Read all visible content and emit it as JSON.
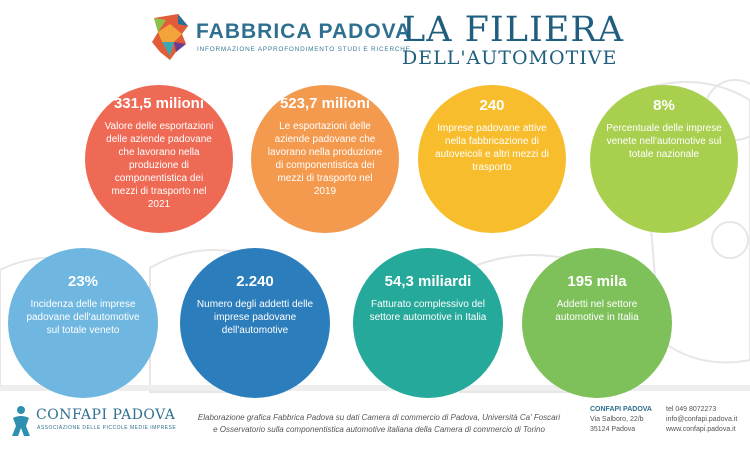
{
  "header": {
    "brand_name": "FABBRICA PADOVA",
    "brand_tagline": "INFORMAZIONE APPROFONDIMENTO STUDI E RICERCHE",
    "title_main": "LA FILIERA",
    "title_sub": "DELL'AUTOMOTIVE"
  },
  "stats": [
    {
      "value": "331,5 milioni",
      "description": "Valore delle esportazioni delle aziende padovane che lavorano nella produzione di componentistica dei mezzi di trasporto nel 2021",
      "color": "#ee6a55"
    },
    {
      "value": "523,7 milioni",
      "description": "Le esportazioni delle aziende padovane che lavorano nella produzione di componentistica dei mezzi di trasporto nel 2019",
      "color": "#f39a4f"
    },
    {
      "value": "240",
      "description": "Imprese padovane attive nella fabbricazione di autoveicoli e altri mezzi di trasporto",
      "color": "#f7bd2c"
    },
    {
      "value": "8%",
      "description": "Percentuale delle imprese venete nell'automotive sul totale nazionale",
      "color": "#a9cf4f"
    },
    {
      "value": "23%",
      "description": "Incidenza delle imprese padovane dell'automotive sul totale veneto",
      "color": "#6fb7e0"
    },
    {
      "value": "2.240",
      "description": "Numero degli addetti delle imprese padovane dell'automotive",
      "color": "#2c7dbb"
    },
    {
      "value": "54,3 miliardi",
      "description": "Fatturato complessivo del settore automotive in Italia",
      "color": "#25a99a"
    },
    {
      "value": "195 mila",
      "description": "Addetti nel settore automotive in Italia",
      "color": "#7ec15a"
    }
  ],
  "footer": {
    "org_name": "CONFAPI PADOVA",
    "org_tagline": "ASSOCIAZIONE DELLE PICCOLE MEDIE IMPRESE",
    "credits_line1": "Elaborazione grafica Fabbrica Padova su dati Camera di commercio di Padova, Università Ca' Foscari",
    "credits_line2": "e Osservatorio sulla componentistica automotive italiana della Camera di commercio di Torino",
    "address_name": "CONFAPI PADOVA",
    "address_street": "Via Salboro, 22/b",
    "address_city": "35124 Padova",
    "tel": "tel 049 8072273",
    "email": "info@confapi.padova.it",
    "website": "www.confapi.padova.it"
  }
}
